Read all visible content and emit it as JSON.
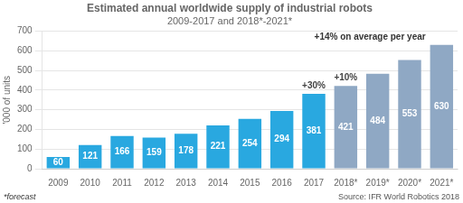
{
  "chart_data": {
    "type": "bar",
    "title": "Estimated annual worldwide supply of industrial robots",
    "subtitle": "2009-2017 and 2018*-2021*",
    "categories": [
      "2009",
      "2010",
      "2011",
      "2012",
      "2013",
      "2014",
      "2015",
      "2016",
      "2017",
      "2018*",
      "2019*",
      "2020*",
      "2021*"
    ],
    "values": [
      60,
      121,
      166,
      159,
      178,
      221,
      254,
      294,
      381,
      421,
      484,
      553,
      630
    ],
    "colors": [
      "#29a8e0",
      "#29a8e0",
      "#29a8e0",
      "#29a8e0",
      "#29a8e0",
      "#29a8e0",
      "#29a8e0",
      "#29a8e0",
      "#29a8e0",
      "#8fa8c4",
      "#8fa8c4",
      "#8fa8c4",
      "#8fa8c4"
    ],
    "ylabel": "'000 of units",
    "ylim": [
      0,
      700
    ],
    "yticks": [
      0,
      100,
      200,
      300,
      400,
      500,
      600,
      700
    ],
    "grid": true,
    "data_labels": true,
    "annotations": [
      {
        "text": "+30%",
        "category": "2017"
      },
      {
        "text": "+10%",
        "category": "2018*"
      },
      {
        "text": "+14% on average per year"
      }
    ],
    "footnote": "*forecast",
    "source": "Source: IFR World Robotics 2018"
  }
}
